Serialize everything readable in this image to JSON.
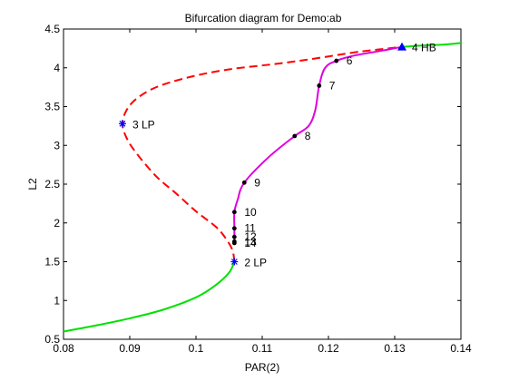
{
  "chart_data": {
    "type": "line",
    "title": "Bifurcation diagram for Demo:ab",
    "xlabel": "PAR(2)",
    "ylabel": "L2",
    "xlim": [
      0.08,
      0.14
    ],
    "ylim": [
      0.5,
      4.5
    ],
    "xticks": [
      0.08,
      0.09,
      0.1,
      0.11,
      0.12,
      0.13,
      0.14
    ],
    "xtick_labels": [
      "0.08",
      "0.09",
      "0.1",
      "0.11",
      "0.12",
      "0.13",
      "0.14"
    ],
    "yticks": [
      0.5,
      1,
      1.5,
      2,
      2.5,
      3,
      3.5,
      4,
      4.5
    ],
    "ytick_labels": [
      "0.5",
      "1",
      "1.5",
      "2",
      "2.5",
      "3",
      "3.5",
      "4",
      "4.5"
    ],
    "grid": false,
    "colors": {
      "stable": "#00e000",
      "unstable": "#ff0000",
      "periodic": "#e000e0",
      "marker_lp": "#0000ff",
      "marker_hb": "#0000ff",
      "marker_pt": "#000000"
    },
    "series": [
      {
        "style": "solid",
        "color": "stable",
        "x": [
          0.08,
          0.085,
          0.09,
          0.095,
          0.1,
          0.103,
          0.105,
          0.1058
        ],
        "y": [
          0.6,
          0.68,
          0.77,
          0.88,
          1.04,
          1.2,
          1.36,
          1.5
        ]
      },
      {
        "style": "dashed",
        "color": "unstable",
        "x": [
          0.1058,
          0.1055,
          0.1045,
          0.103,
          0.1,
          0.097,
          0.094,
          0.091,
          0.0895,
          0.0889,
          0.0895,
          0.091,
          0.094,
          0.099,
          0.105,
          0.112,
          0.118,
          0.124,
          0.128,
          0.1311
        ],
        "y": [
          1.5,
          1.65,
          1.8,
          1.95,
          2.15,
          2.38,
          2.6,
          2.9,
          3.1,
          3.28,
          3.45,
          3.6,
          3.75,
          3.88,
          3.98,
          4.05,
          4.12,
          4.2,
          4.24,
          4.27
        ]
      },
      {
        "style": "solid",
        "color": "stable",
        "x": [
          0.1311,
          0.1345,
          0.1375,
          0.14
        ],
        "y": [
          4.27,
          4.29,
          4.3,
          4.32
        ]
      },
      {
        "style": "solid",
        "color": "periodic",
        "x": [
          0.1311,
          0.128,
          0.124,
          0.1212,
          0.1195,
          0.1186,
          0.118,
          0.117,
          0.1149,
          0.111,
          0.1073,
          0.1063,
          0.1058,
          0.1058,
          0.1058,
          0.1058,
          0.1058
        ],
        "y": [
          4.27,
          4.22,
          4.16,
          4.09,
          4.0,
          3.77,
          3.45,
          3.25,
          3.12,
          2.85,
          2.52,
          2.3,
          2.14,
          1.93,
          1.82,
          1.76,
          1.74
        ]
      }
    ],
    "special_points": [
      {
        "x": 0.1058,
        "y": 1.5,
        "marker": "star",
        "label": "2  LP"
      },
      {
        "x": 0.0889,
        "y": 3.28,
        "marker": "star",
        "label": "3  LP"
      },
      {
        "x": 0.1311,
        "y": 4.27,
        "marker": "triangle",
        "label": "4  HB"
      }
    ],
    "periodic_points": [
      {
        "x": 0.1212,
        "y": 4.09,
        "label": "6"
      },
      {
        "x": 0.1186,
        "y": 3.77,
        "label": "7"
      },
      {
        "x": 0.1149,
        "y": 3.12,
        "label": "8"
      },
      {
        "x": 0.1073,
        "y": 2.52,
        "label": "9"
      },
      {
        "x": 0.1058,
        "y": 2.14,
        "label": "10"
      },
      {
        "x": 0.1058,
        "y": 1.93,
        "label": "11"
      },
      {
        "x": 0.1058,
        "y": 1.82,
        "label": "12"
      },
      {
        "x": 0.1058,
        "y": 1.76,
        "label": "13"
      },
      {
        "x": 0.1058,
        "y": 1.74,
        "label": "14"
      }
    ]
  }
}
